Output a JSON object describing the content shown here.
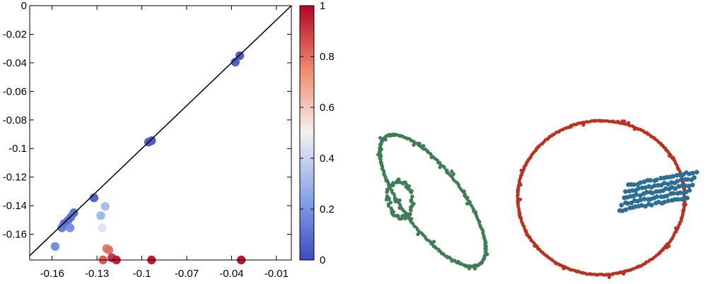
{
  "chart_data": [
    {
      "type": "scatter",
      "title": "",
      "xlabel": "",
      "ylabel": "",
      "xlim": [
        -0.175,
        -0.0
      ],
      "ylim": [
        -0.178,
        0.0
      ],
      "x_ticks": [
        -0.16,
        -0.13,
        -0.1,
        -0.07,
        -0.04,
        -0.01
      ],
      "x_tick_labels": [
        "-0.16",
        "-0.13",
        "-0.1",
        "-0.07",
        "-0.04",
        "-0.01"
      ],
      "y_ticks": [
        0,
        -0.02,
        -0.04,
        -0.06,
        -0.08,
        -0.1,
        -0.12,
        -0.14,
        -0.16
      ],
      "y_tick_labels": [
        "0",
        "-0.02",
        "-0.04",
        "-0.06",
        "-0.08",
        "-0.1",
        "-0.12",
        "-0.14",
        "-0.16"
      ],
      "reference_line": "y = x",
      "grid": false,
      "colorbar": {
        "range": [
          0,
          1
        ],
        "ticks": [
          0,
          0.2,
          0.4,
          0.6,
          0.8,
          1
        ],
        "tick_labels": [
          "0",
          "0.2",
          "0.4",
          "0.6",
          "0.8",
          "1"
        ],
        "colormap": "blue-white-red",
        "colors": [
          "#3b4cc0",
          "#f2f2f2",
          "#b40426"
        ]
      },
      "points": [
        {
          "x": -0.0345,
          "y": -0.035,
          "c": 0.02
        },
        {
          "x": -0.0375,
          "y": -0.0395,
          "c": 0.03
        },
        {
          "x": -0.0935,
          "y": -0.0945,
          "c": 0.03
        },
        {
          "x": -0.0955,
          "y": -0.0955,
          "c": 0.04
        },
        {
          "x": -0.132,
          "y": -0.1345,
          "c": 0.05
        },
        {
          "x": -0.1455,
          "y": -0.145,
          "c": 0.08
        },
        {
          "x": -0.1475,
          "y": -0.148,
          "c": 0.1
        },
        {
          "x": -0.1495,
          "y": -0.1505,
          "c": 0.1
        },
        {
          "x": -0.152,
          "y": -0.1525,
          "c": 0.08
        },
        {
          "x": -0.1535,
          "y": -0.1555,
          "c": 0.12
        },
        {
          "x": -0.148,
          "y": -0.1555,
          "c": 0.18
        },
        {
          "x": -0.158,
          "y": -0.1685,
          "c": 0.17
        },
        {
          "x": -0.1275,
          "y": -0.147,
          "c": 0.3
        },
        {
          "x": -0.1245,
          "y": -0.1405,
          "c": 0.32
        },
        {
          "x": -0.1265,
          "y": -0.1555,
          "c": 0.45
        },
        {
          "x": -0.1235,
          "y": -0.17,
          "c": 0.78
        },
        {
          "x": -0.122,
          "y": -0.171,
          "c": 0.8
        },
        {
          "x": -0.126,
          "y": -0.178,
          "c": 0.85
        },
        {
          "x": -0.12,
          "y": -0.1765,
          "c": 0.93
        },
        {
          "x": -0.117,
          "y": -0.178,
          "c": 0.96
        },
        {
          "x": -0.0935,
          "y": -0.178,
          "c": 0.98
        },
        {
          "x": -0.0335,
          "y": -0.178,
          "c": 0.99
        }
      ]
    },
    {
      "type": "scatter",
      "title": "",
      "description_colors": {
        "green": "#3f7d55",
        "red": "#b8321f",
        "blue": "#2c6e96"
      }
    }
  ]
}
